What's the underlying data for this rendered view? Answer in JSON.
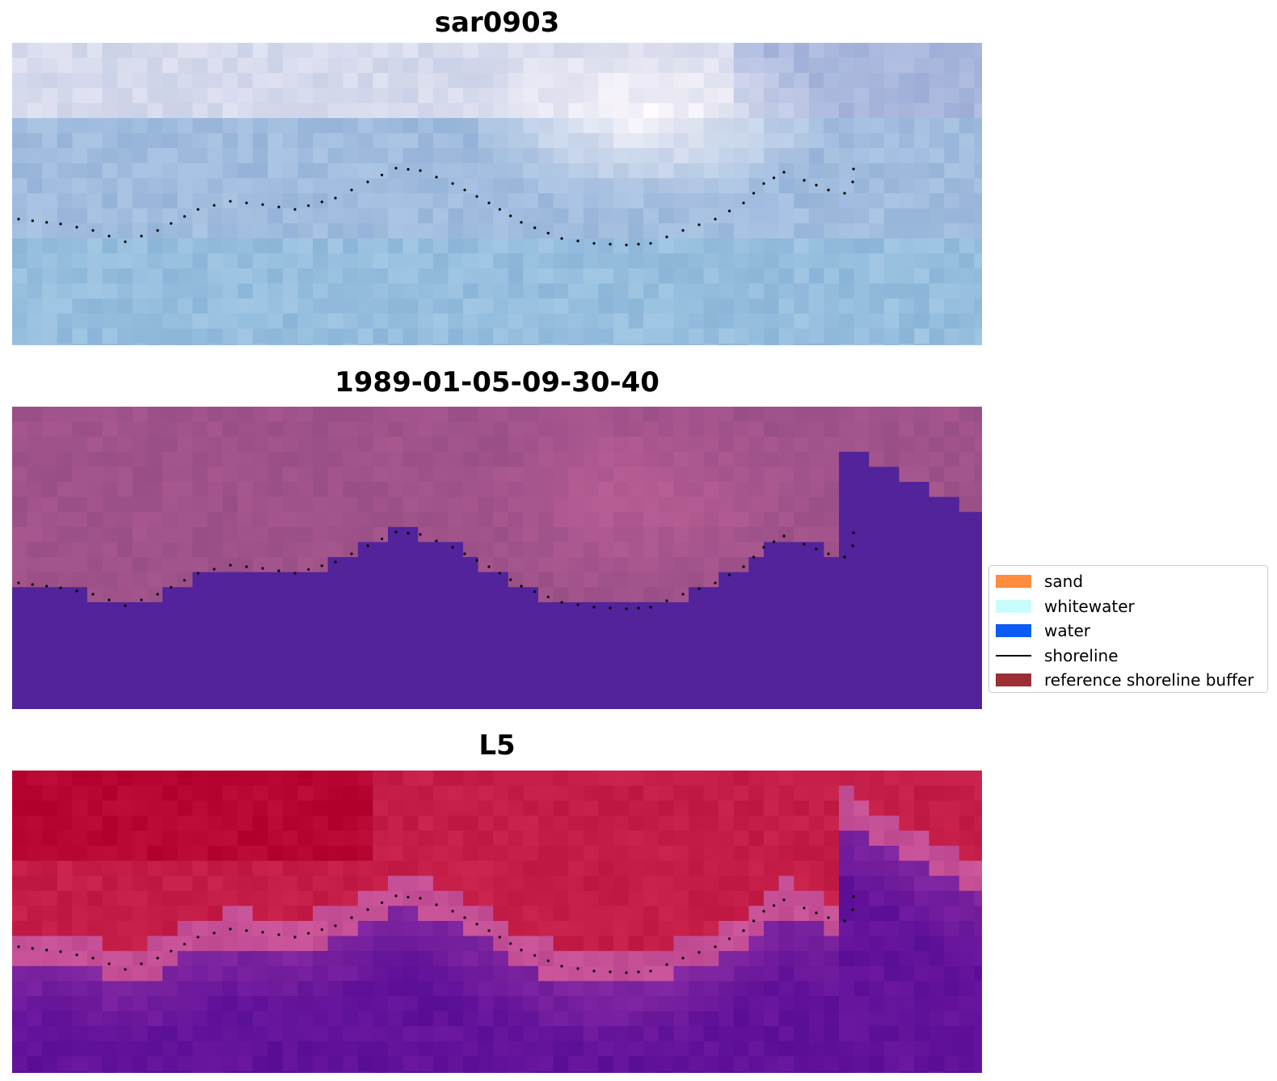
{
  "panels": [
    {
      "title": "sar0903",
      "style": "sar"
    },
    {
      "title": "1989-01-05-09-30-40",
      "style": "classified"
    },
    {
      "title": "L5",
      "style": "l5"
    }
  ],
  "legend": {
    "items": [
      {
        "label": "sand",
        "color": "#ff8c3d",
        "kind": "patch"
      },
      {
        "label": "whitewater",
        "color": "#c9fcfc",
        "kind": "patch"
      },
      {
        "label": "water",
        "color": "#0b5cf5",
        "kind": "patch"
      },
      {
        "label": "shoreline",
        "color": "#000000",
        "kind": "line"
      },
      {
        "label": "reference shoreline buffer",
        "color": "#9b2f35",
        "kind": "patch"
      }
    ]
  }
}
